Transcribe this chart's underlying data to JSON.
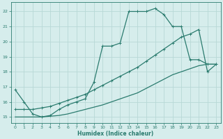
{
  "xlabel": "Humidex (Indice chaleur)",
  "bg_color": "#d6edec",
  "grid_color": "#b8d8d6",
  "line_color": "#2a7b6e",
  "xlim": [
    -0.5,
    23.5
  ],
  "ylim": [
    14.6,
    22.6
  ],
  "yticks": [
    15,
    16,
    17,
    18,
    19,
    20,
    21,
    22
  ],
  "xticks": [
    0,
    1,
    2,
    3,
    4,
    5,
    6,
    7,
    8,
    9,
    10,
    11,
    12,
    13,
    14,
    15,
    16,
    17,
    18,
    19,
    20,
    21,
    22,
    23
  ],
  "curve1_x": [
    0,
    1,
    2,
    3,
    4,
    5,
    6,
    7,
    8,
    9,
    10,
    11,
    12,
    13,
    14,
    15,
    16,
    17,
    18,
    19,
    20,
    21,
    22,
    23
  ],
  "curve1_y": [
    16.8,
    16.0,
    15.2,
    15.0,
    15.1,
    15.5,
    15.8,
    16.0,
    16.2,
    17.3,
    19.7,
    19.7,
    19.9,
    22.0,
    22.0,
    22.0,
    22.2,
    21.8,
    21.0,
    21.0,
    18.8,
    18.8,
    18.5,
    18.5
  ],
  "curve2_x": [
    0,
    1,
    2,
    3,
    4,
    5,
    6,
    7,
    8,
    9,
    10,
    11,
    12,
    13,
    14,
    15,
    16,
    17,
    18,
    19,
    20,
    21,
    22,
    23
  ],
  "curve2_y": [
    15.5,
    15.5,
    15.5,
    15.6,
    15.7,
    15.9,
    16.1,
    16.3,
    16.5,
    16.8,
    17.1,
    17.4,
    17.7,
    18.0,
    18.3,
    18.7,
    19.1,
    19.5,
    19.9,
    20.3,
    20.5,
    20.8,
    18.0,
    18.5
  ],
  "curve3_x": [
    0,
    1,
    2,
    3,
    4,
    5,
    6,
    7,
    8,
    9,
    10,
    11,
    12,
    13,
    14,
    15,
    16,
    17,
    18,
    19,
    20,
    21,
    22,
    23
  ],
  "curve3_y": [
    15.0,
    15.0,
    15.0,
    15.0,
    15.05,
    15.1,
    15.2,
    15.35,
    15.5,
    15.65,
    15.8,
    16.0,
    16.2,
    16.4,
    16.6,
    16.9,
    17.2,
    17.5,
    17.8,
    18.0,
    18.2,
    18.4,
    18.5,
    18.5
  ]
}
